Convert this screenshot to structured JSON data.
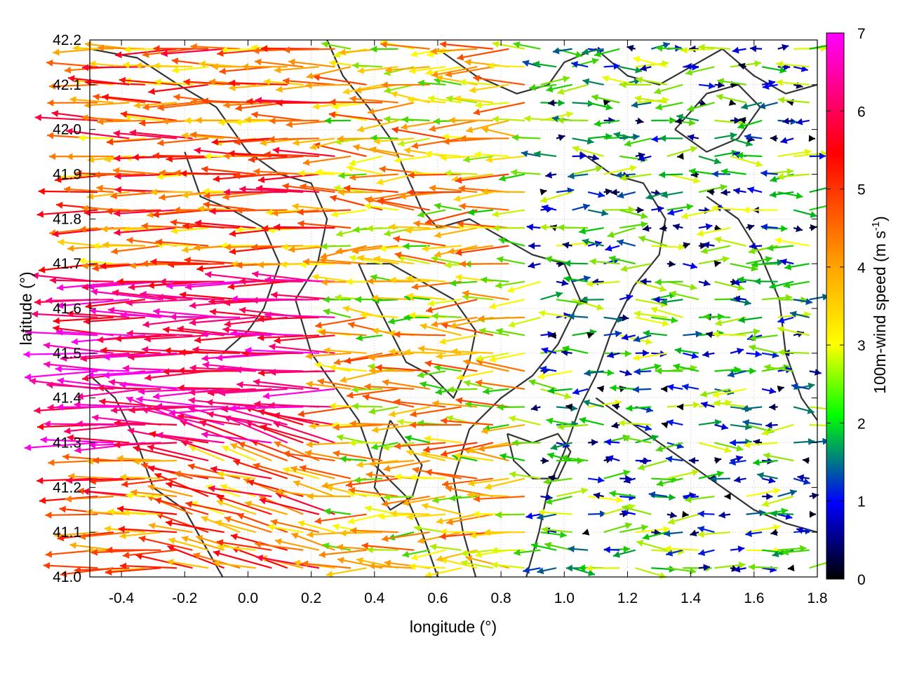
{
  "chart_data": {
    "type": "vector-field",
    "xlabel": "longitude (°)",
    "ylabel": "latitude (°)",
    "colorbar_label": "100m-wind speed (m s",
    "colorbar_label_sup": "-1",
    "colorbar_label_end": ")",
    "xlim": [
      -0.5,
      1.8
    ],
    "ylim": [
      41.0,
      42.2
    ],
    "xticks": [
      -0.4,
      -0.2,
      0.0,
      0.2,
      0.4,
      0.6,
      0.8,
      1.0,
      1.2,
      1.4,
      1.6,
      1.8
    ],
    "xtick_labels": [
      "-0.4",
      "-0.2",
      "0.0",
      "0.2",
      "0.4",
      "0.6",
      "0.8",
      "1.0",
      "1.2",
      "1.4",
      "1.6",
      "1.8"
    ],
    "yticks": [
      41.0,
      41.1,
      41.2,
      41.3,
      41.4,
      41.5,
      41.6,
      41.7,
      41.8,
      41.9,
      42.0,
      42.1,
      42.2
    ],
    "ytick_labels": [
      "41.0",
      "41.1",
      "41.2",
      "41.3",
      "41.4",
      "41.5",
      "41.6",
      "41.7",
      "41.8",
      "41.9",
      "42.0",
      "42.1",
      "42.2"
    ],
    "colorbar_range": [
      0,
      7
    ],
    "colorbar_ticks": [
      "0",
      "1",
      "2",
      "3",
      "4",
      "5",
      "6",
      "7"
    ],
    "colormap": [
      "#000000",
      "#0000ff",
      "#00ff00",
      "#ffff00",
      "#ffa500",
      "#ff0000",
      "#ff00ff"
    ],
    "grid": true,
    "contour_color": "#333333",
    "wind_field": {
      "grid_lon_start": -0.5,
      "grid_lon_step": 0.05,
      "grid_lat_start": 41.0,
      "grid_lat_step": 0.04,
      "n_lon": 46,
      "n_lat": 30,
      "regimes": [
        {
          "region": "west, lon < 0.3",
          "direction": "westward (easterly flow)",
          "speed_range": [
            3,
            7
          ]
        },
        {
          "region": "central, 0.3 - 0.9",
          "direction": "westward",
          "speed_range": [
            2,
            5
          ]
        },
        {
          "region": "east, lon > 0.9",
          "direction": "variable, mostly east/west",
          "speed_range": [
            0,
            3
          ]
        }
      ]
    },
    "contours": [
      {
        "level": "terrain",
        "points": [
          [
            -0.5,
            42.18
          ],
          [
            -0.35,
            42.16
          ],
          [
            -0.22,
            42.1
          ],
          [
            -0.1,
            42.05
          ],
          [
            0.0,
            41.95
          ],
          [
            0.1,
            41.9
          ],
          [
            0.2,
            41.88
          ],
          [
            0.25,
            41.8
          ],
          [
            0.22,
            41.7
          ],
          [
            0.15,
            41.62
          ],
          [
            0.2,
            41.5
          ],
          [
            0.28,
            41.42
          ],
          [
            0.35,
            41.35
          ],
          [
            0.4,
            41.25
          ],
          [
            0.5,
            41.18
          ],
          [
            0.55,
            41.1
          ],
          [
            0.6,
            41.0
          ]
        ]
      },
      {
        "level": "terrain",
        "points": [
          [
            0.25,
            42.2
          ],
          [
            0.3,
            42.12
          ],
          [
            0.38,
            42.05
          ],
          [
            0.45,
            41.98
          ],
          [
            0.5,
            41.9
          ],
          [
            0.55,
            41.82
          ],
          [
            0.6,
            41.78
          ],
          [
            0.7,
            41.8
          ],
          [
            0.8,
            41.76
          ],
          [
            0.9,
            41.72
          ],
          [
            1.0,
            41.7
          ],
          [
            1.05,
            41.62
          ],
          [
            0.98,
            41.52
          ],
          [
            0.9,
            41.45
          ],
          [
            0.8,
            41.4
          ],
          [
            0.7,
            41.33
          ],
          [
            0.65,
            41.22
          ],
          [
            0.68,
            41.1
          ],
          [
            0.72,
            41.0
          ]
        ]
      },
      {
        "level": "terrain",
        "points": [
          [
            0.6,
            42.18
          ],
          [
            0.72,
            42.12
          ],
          [
            0.85,
            42.08
          ],
          [
            0.95,
            42.1
          ],
          [
            1.0,
            42.15
          ],
          [
            1.1,
            42.18
          ],
          [
            1.2,
            42.12
          ],
          [
            1.3,
            42.1
          ],
          [
            1.4,
            42.14
          ],
          [
            1.5,
            42.18
          ],
          [
            1.6,
            42.12
          ],
          [
            1.7,
            42.08
          ],
          [
            1.8,
            42.1
          ]
        ]
      },
      {
        "level": "terrain",
        "points": [
          [
            1.05,
            41.95
          ],
          [
            1.15,
            41.9
          ],
          [
            1.25,
            41.88
          ],
          [
            1.32,
            41.8
          ],
          [
            1.3,
            41.72
          ],
          [
            1.22,
            41.65
          ],
          [
            1.15,
            41.55
          ],
          [
            1.1,
            41.45
          ],
          [
            1.05,
            41.38
          ],
          [
            1.0,
            41.28
          ],
          [
            0.95,
            41.2
          ],
          [
            0.92,
            41.1
          ],
          [
            0.88,
            41.0
          ]
        ]
      },
      {
        "level": "terrain",
        "points": [
          [
            0.82,
            41.32
          ],
          [
            0.9,
            41.3
          ],
          [
            0.98,
            41.32
          ],
          [
            1.02,
            41.28
          ],
          [
            0.98,
            41.22
          ],
          [
            0.9,
            41.22
          ],
          [
            0.84,
            41.26
          ],
          [
            0.82,
            41.32
          ]
        ]
      },
      {
        "level": "terrain",
        "points": [
          [
            1.1,
            41.4
          ],
          [
            1.2,
            41.35
          ],
          [
            1.3,
            41.3
          ],
          [
            1.4,
            41.25
          ],
          [
            1.5,
            41.2
          ],
          [
            1.6,
            41.15
          ],
          [
            1.7,
            41.12
          ],
          [
            1.8,
            41.1
          ]
        ]
      },
      {
        "level": "terrain",
        "points": [
          [
            1.45,
            41.85
          ],
          [
            1.55,
            41.8
          ],
          [
            1.62,
            41.72
          ],
          [
            1.68,
            41.62
          ],
          [
            1.7,
            41.5
          ],
          [
            1.75,
            41.4
          ],
          [
            1.8,
            41.35
          ]
        ]
      },
      {
        "level": "terrain",
        "points": [
          [
            -0.5,
            41.45
          ],
          [
            -0.42,
            41.4
          ],
          [
            -0.35,
            41.3
          ],
          [
            -0.3,
            41.2
          ],
          [
            -0.2,
            41.15
          ],
          [
            -0.12,
            41.05
          ],
          [
            -0.08,
            41.0
          ]
        ]
      },
      {
        "level": "terrain",
        "points": [
          [
            -0.2,
            41.95
          ],
          [
            -0.15,
            41.85
          ],
          [
            -0.05,
            41.82
          ],
          [
            0.05,
            41.78
          ],
          [
            0.1,
            41.7
          ],
          [
            0.05,
            41.6
          ],
          [
            0.0,
            41.55
          ],
          [
            -0.08,
            41.5
          ]
        ]
      },
      {
        "level": "terrain",
        "points": [
          [
            0.35,
            41.7
          ],
          [
            0.4,
            41.62
          ],
          [
            0.45,
            41.55
          ],
          [
            0.5,
            41.48
          ],
          [
            0.58,
            41.45
          ],
          [
            0.65,
            41.4
          ],
          [
            0.7,
            41.48
          ],
          [
            0.72,
            41.55
          ],
          [
            0.65,
            41.62
          ],
          [
            0.55,
            41.66
          ],
          [
            0.45,
            41.7
          ],
          [
            0.35,
            41.7
          ]
        ]
      },
      {
        "level": "terrain",
        "points": [
          [
            1.35,
            42.0
          ],
          [
            1.45,
            41.95
          ],
          [
            1.55,
            41.98
          ],
          [
            1.62,
            42.05
          ],
          [
            1.55,
            42.1
          ],
          [
            1.45,
            42.08
          ],
          [
            1.35,
            42.0
          ]
        ]
      },
      {
        "level": "terrain",
        "points": [
          [
            0.45,
            41.35
          ],
          [
            0.5,
            41.3
          ],
          [
            0.55,
            41.25
          ],
          [
            0.52,
            41.18
          ],
          [
            0.45,
            41.15
          ],
          [
            0.4,
            41.2
          ],
          [
            0.42,
            41.28
          ],
          [
            0.45,
            41.35
          ]
        ]
      }
    ]
  }
}
